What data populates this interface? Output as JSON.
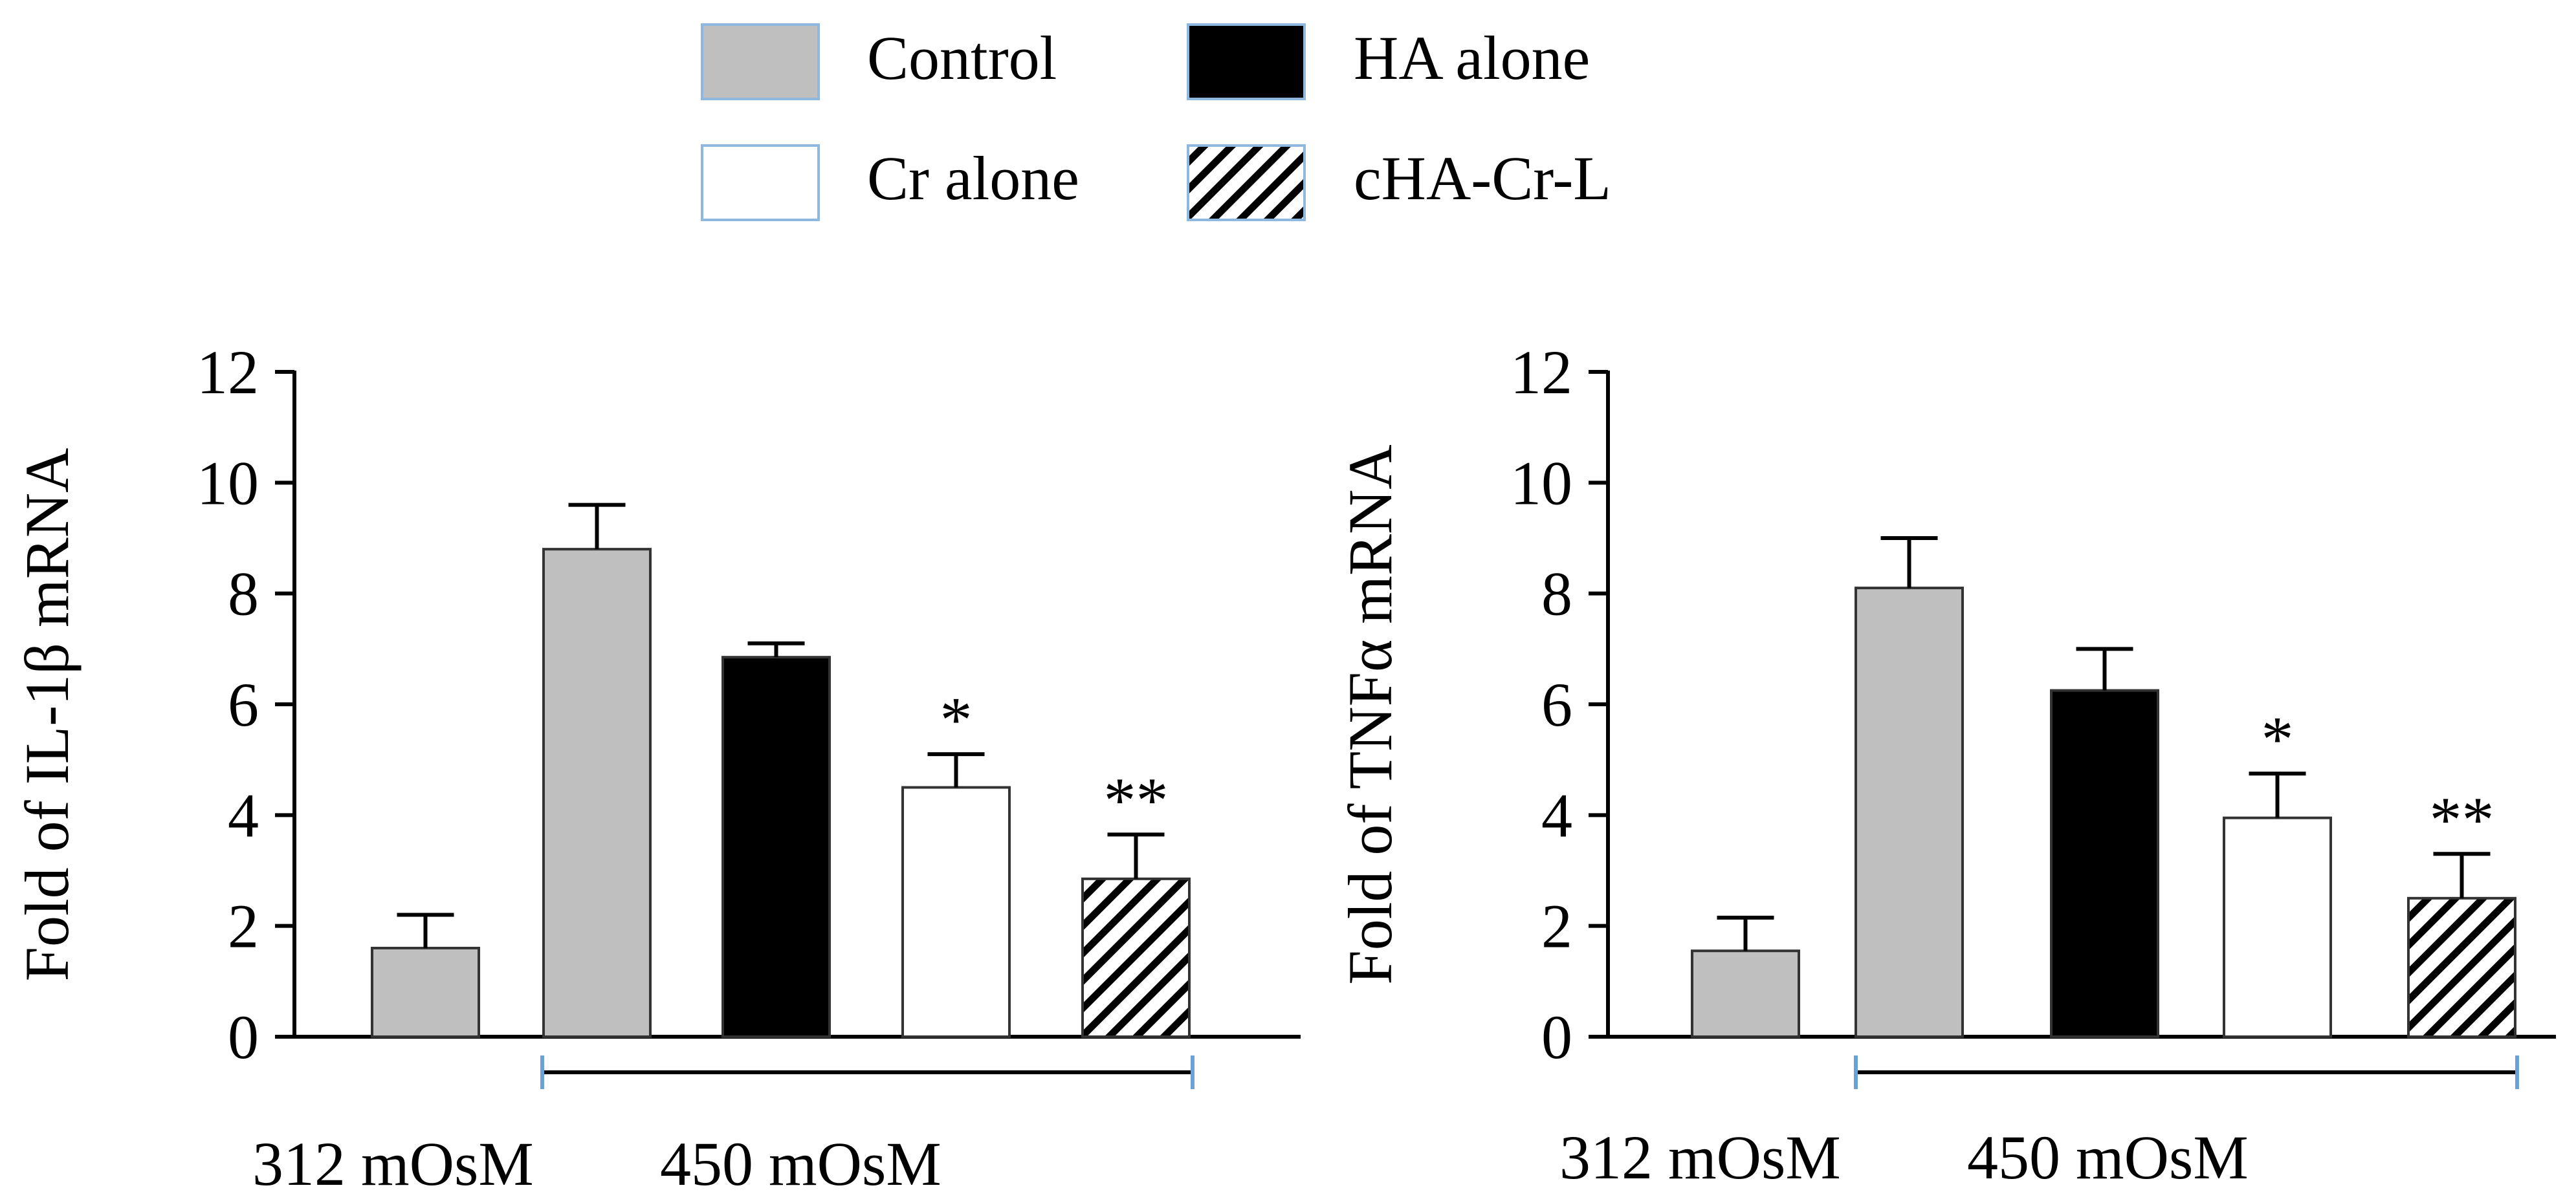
{
  "legend": {
    "position": "top-center",
    "items": [
      {
        "key": "control",
        "label": "Control",
        "fill": "#bfbfbf"
      },
      {
        "key": "ha",
        "label": "HA alone",
        "fill": "#000000"
      },
      {
        "key": "cr",
        "label": "Cr alone",
        "fill": "#ffffff"
      },
      {
        "key": "chacrl",
        "label": "cHA-Cr-L",
        "fill": "hatch"
      }
    ]
  },
  "colors": {
    "control": "#bfbfbf",
    "ha": "#000000",
    "cr": "#ffffff",
    "bar_edge": "#333333",
    "legend_edge": "#8fb8e0",
    "bracket_tick": "#6aa2d8"
  },
  "chart_data": [
    {
      "type": "bar",
      "title": "",
      "ylabel": "Fold of IL-1β mRNA",
      "ylim": [
        0,
        12
      ],
      "yticks": [
        "0",
        "2",
        "4",
        "6",
        "8",
        "10",
        "12"
      ],
      "grid": false,
      "categories": [
        "312 mOsM",
        "450 mOsM"
      ],
      "bars": [
        {
          "group": "312 mOsM",
          "series": "control",
          "value": 1.6,
          "error": 0.6,
          "sig": ""
        },
        {
          "group": "450 mOsM",
          "series": "control",
          "value": 8.8,
          "error": 0.8,
          "sig": ""
        },
        {
          "group": "450 mOsM",
          "series": "ha",
          "value": 6.85,
          "error": 0.25,
          "sig": ""
        },
        {
          "group": "450 mOsM",
          "series": "cr",
          "value": 4.5,
          "error": 0.6,
          "sig": "*"
        },
        {
          "group": "450 mOsM",
          "series": "chacrl",
          "value": 2.85,
          "error": 0.8,
          "sig": "**"
        }
      ]
    },
    {
      "type": "bar",
      "title": "",
      "ylabel": "Fold of TNFα mRNA",
      "ylim": [
        0,
        12
      ],
      "yticks": [
        "0",
        "2",
        "4",
        "6",
        "8",
        "10",
        "12"
      ],
      "grid": false,
      "categories": [
        "312 mOsM",
        "450 mOsM"
      ],
      "bars": [
        {
          "group": "312 mOsM",
          "series": "control",
          "value": 1.55,
          "error": 0.6,
          "sig": ""
        },
        {
          "group": "450 mOsM",
          "series": "control",
          "value": 8.1,
          "error": 0.9,
          "sig": ""
        },
        {
          "group": "450 mOsM",
          "series": "ha",
          "value": 6.25,
          "error": 0.75,
          "sig": ""
        },
        {
          "group": "450 mOsM",
          "series": "cr",
          "value": 3.95,
          "error": 0.8,
          "sig": "*"
        },
        {
          "group": "450 mOsM",
          "series": "chacrl",
          "value": 2.5,
          "error": 0.8,
          "sig": "**"
        }
      ]
    }
  ]
}
